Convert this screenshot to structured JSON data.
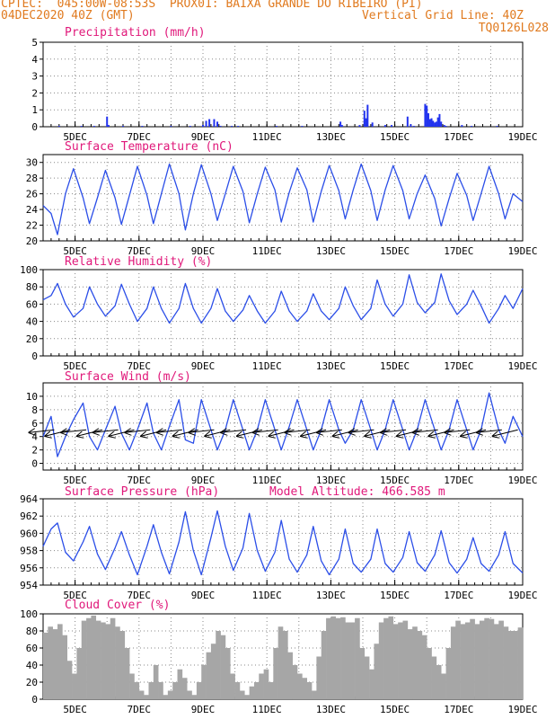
{
  "header": {
    "line1_left": "CPTEC:  045:00W-08:53S  PROX01: BAIXA GRANDE DO RIBEIRO (PI)",
    "line2_left": "04DEC2020 40Z (GMT)",
    "line2_right": "Vertical Grid Line: 40Z",
    "line3_right": "TQ0126L028"
  },
  "colors": {
    "header_text": "#e07a1f",
    "panel_title": "#e0187a",
    "series_line": "#2b4ee8",
    "precip_bar": "#2233ee",
    "cloud_fill": "#a6a6a6",
    "grid": "#888888"
  },
  "chart_data": [
    {
      "id": "precip",
      "type": "bar",
      "title": "Precipitation (mm/h)",
      "ylim": [
        0,
        5
      ],
      "yticks": [
        0,
        1,
        2,
        3,
        4,
        5
      ],
      "grid": true,
      "x_start_day": 4.0,
      "x_end_day": 19.0,
      "xtick_days": [
        5,
        7,
        9,
        11,
        13,
        15,
        17,
        19
      ],
      "xtick_labels": [
        "5DEC",
        "7DEC",
        "9DEC",
        "11DEC",
        "13DEC",
        "15DEC",
        "17DEC",
        "19DEC"
      ],
      "x_days": [
        4.5,
        5.2,
        5.6,
        6.0,
        6.05,
        6.5,
        7.1,
        8.0,
        8.6,
        9.0,
        9.1,
        9.2,
        9.35,
        9.45,
        9.55,
        9.9,
        10.1,
        11.3,
        12.1,
        13.3,
        13.35,
        13.9,
        14.05,
        14.1,
        14.15,
        14.3,
        14.7,
        14.9,
        15.4,
        15.5,
        15.6,
        15.95,
        16.0,
        16.05,
        16.1,
        16.15,
        16.2,
        16.25,
        16.3,
        16.35,
        16.4,
        16.45,
        16.55,
        16.6,
        17.1,
        17.4,
        18.2
      ],
      "values": [
        0.05,
        0.05,
        0.05,
        0.6,
        0.1,
        0.05,
        0.05,
        0.05,
        0.05,
        0.1,
        0.35,
        0.45,
        0.45,
        0.3,
        0.05,
        0.05,
        0.05,
        0.05,
        0.05,
        0.3,
        0.1,
        0.1,
        0.95,
        0.5,
        1.3,
        0.25,
        0.1,
        0.1,
        0.6,
        0.15,
        0.05,
        1.35,
        1.25,
        0.8,
        0.45,
        0.5,
        0.35,
        0.25,
        0.3,
        0.55,
        0.75,
        0.3,
        0.1,
        0.05,
        0.1,
        0.05,
        0.05
      ]
    },
    {
      "id": "temperature",
      "type": "line",
      "title": "Surface Temperature (nC)",
      "ylim": [
        20,
        31
      ],
      "yticks": [
        20,
        22,
        24,
        26,
        28,
        30
      ],
      "grid": true,
      "x_start_day": 4.0,
      "x_end_day": 19.0,
      "xtick_days": [
        5,
        7,
        9,
        11,
        13,
        15,
        17,
        19
      ],
      "xtick_labels": [
        "5DEC",
        "7DEC",
        "9DEC",
        "11DEC",
        "13DEC",
        "15DEC",
        "17DEC",
        "19DEC"
      ],
      "x_days": [
        4.0,
        4.25,
        4.45,
        4.7,
        4.95,
        5.25,
        5.45,
        5.7,
        5.95,
        6.25,
        6.45,
        6.7,
        6.95,
        7.25,
        7.45,
        7.7,
        7.95,
        8.25,
        8.45,
        8.7,
        8.95,
        9.25,
        9.45,
        9.7,
        9.95,
        10.25,
        10.45,
        10.7,
        10.95,
        11.25,
        11.45,
        11.7,
        11.95,
        12.25,
        12.45,
        12.7,
        12.95,
        13.25,
        13.45,
        13.7,
        13.95,
        14.25,
        14.45,
        14.7,
        14.95,
        15.25,
        15.45,
        15.7,
        15.95,
        16.25,
        16.45,
        16.7,
        16.95,
        17.25,
        17.45,
        17.7,
        17.95,
        18.25,
        18.45,
        18.7,
        19.0
      ],
      "values": [
        24.5,
        23.5,
        20.8,
        26,
        29.2,
        25.5,
        22.2,
        25.5,
        29,
        25.5,
        22.1,
        25.8,
        29.5,
        25.8,
        22.2,
        26,
        29.8,
        26,
        21.4,
        26,
        29.7,
        26,
        22.6,
        26,
        29.5,
        26.3,
        22.3,
        26,
        29.4,
        26.5,
        22.4,
        26.2,
        29.3,
        26.5,
        22.4,
        26.3,
        29.6,
        26.4,
        22.8,
        26.5,
        29.8,
        26.4,
        22.6,
        26.5,
        29.6,
        26.4,
        22.8,
        26,
        28.4,
        25.4,
        21.9,
        25.4,
        28.6,
        25.8,
        22.6,
        26,
        29.5,
        26,
        22.8,
        26,
        25
      ]
    },
    {
      "id": "humidity",
      "type": "line",
      "title": "Relative Humidity (%)",
      "ylim": [
        0,
        100
      ],
      "yticks": [
        0,
        20,
        40,
        60,
        80,
        100
      ],
      "grid": true,
      "x_start_day": 4.0,
      "x_end_day": 19.0,
      "xtick_days": [
        5,
        7,
        9,
        11,
        13,
        15,
        17,
        19
      ],
      "xtick_labels": [
        "5DEC",
        "7DEC",
        "9DEC",
        "11DEC",
        "13DEC",
        "15DEC",
        "17DEC",
        "19DEC"
      ],
      "x_days": [
        4.0,
        4.25,
        4.45,
        4.7,
        4.95,
        5.25,
        5.45,
        5.7,
        5.95,
        6.25,
        6.45,
        6.7,
        6.95,
        7.25,
        7.45,
        7.7,
        7.95,
        8.25,
        8.45,
        8.7,
        8.95,
        9.25,
        9.45,
        9.7,
        9.95,
        10.25,
        10.45,
        10.7,
        10.95,
        11.25,
        11.45,
        11.7,
        11.95,
        12.25,
        12.45,
        12.7,
        12.95,
        13.25,
        13.45,
        13.7,
        13.95,
        14.25,
        14.45,
        14.7,
        14.95,
        15.25,
        15.45,
        15.7,
        15.95,
        16.25,
        16.45,
        16.7,
        16.95,
        17.25,
        17.45,
        17.7,
        17.95,
        18.25,
        18.45,
        18.7,
        19.0
      ],
      "values": [
        65,
        70,
        84,
        60,
        45,
        55,
        80,
        60,
        46,
        58,
        83,
        60,
        40,
        55,
        80,
        55,
        38,
        55,
        84,
        55,
        38,
        55,
        78,
        52,
        40,
        53,
        70,
        52,
        38,
        52,
        75,
        52,
        40,
        52,
        72,
        52,
        42,
        55,
        80,
        58,
        42,
        55,
        88,
        60,
        46,
        60,
        94,
        62,
        50,
        62,
        95,
        64,
        48,
        60,
        76,
        58,
        38,
        55,
        70,
        55,
        78
      ]
    },
    {
      "id": "wind",
      "type": "line",
      "title": "Surface Wind (m/s)",
      "ylim": [
        -1,
        12
      ],
      "yticks": [
        0,
        2,
        4,
        6,
        8,
        10
      ],
      "grid": true,
      "x_start_day": 4.0,
      "x_end_day": 19.0,
      "xtick_days": [
        5,
        7,
        9,
        11,
        13,
        15,
        17,
        19
      ],
      "xtick_labels": [
        "5DEC",
        "7DEC",
        "9DEC",
        "11DEC",
        "13DEC",
        "15DEC",
        "17DEC",
        "19DEC"
      ],
      "x_days": [
        4.0,
        4.25,
        4.45,
        4.7,
        4.95,
        5.25,
        5.45,
        5.7,
        5.95,
        6.25,
        6.45,
        6.7,
        6.95,
        7.25,
        7.45,
        7.7,
        7.95,
        8.25,
        8.45,
        8.7,
        8.95,
        9.25,
        9.45,
        9.7,
        9.95,
        10.25,
        10.45,
        10.7,
        10.95,
        11.25,
        11.45,
        11.7,
        11.95,
        12.25,
        12.45,
        12.7,
        12.95,
        13.25,
        13.45,
        13.7,
        13.95,
        14.25,
        14.45,
        14.7,
        14.95,
        15.25,
        15.45,
        15.7,
        15.95,
        16.25,
        16.45,
        16.7,
        16.95,
        17.25,
        17.45,
        17.7,
        17.95,
        18.25,
        18.45,
        18.7,
        19.0
      ],
      "values": [
        4,
        7,
        1,
        4,
        6.5,
        9,
        4,
        2,
        5,
        8.5,
        4.5,
        2,
        5,
        9,
        4.5,
        2,
        5.5,
        9.5,
        3.5,
        3,
        9.5,
        5,
        2,
        5,
        9.5,
        5,
        2,
        5,
        9.5,
        5,
        2,
        5.5,
        9.5,
        5,
        2,
        5,
        9.5,
        5,
        3,
        5,
        9.5,
        5,
        2,
        5,
        9.5,
        5,
        2,
        5,
        9.5,
        5,
        2,
        5,
        9.5,
        5,
        2,
        5,
        10.5,
        5,
        3,
        7,
        4
      ],
      "arrow_days": [
        4.35,
        4.85,
        5.35,
        5.85,
        6.35,
        6.85,
        7.35,
        7.85,
        8.35,
        8.85,
        9.35,
        9.85,
        10.35,
        10.85,
        11.35,
        11.85,
        12.35,
        12.85,
        13.35,
        13.85,
        14.35,
        14.85,
        15.35,
        15.85,
        16.35,
        16.85,
        17.35,
        17.85,
        18.35,
        18.85
      ],
      "arrow_dirs": [
        "west",
        "southwest",
        "west",
        "southwest",
        "west",
        "southwest",
        "west",
        "southwest",
        "west",
        "southwest",
        "west",
        "southwest",
        "west",
        "southwest",
        "west",
        "southwest",
        "west",
        "southwest",
        "west",
        "southwest",
        "west",
        "southwest",
        "west",
        "southwest",
        "west",
        "southwest",
        "west",
        "southwest",
        "west",
        "southwest"
      ]
    },
    {
      "id": "pressure",
      "type": "line",
      "title": "Surface Pressure (hPa)",
      "subtitle": "Model Altitude: 466.585 m",
      "ylim": [
        954,
        964
      ],
      "yticks": [
        954,
        956,
        958,
        960,
        962,
        964
      ],
      "grid": true,
      "x_start_day": 4.0,
      "x_end_day": 19.0,
      "xtick_days": [
        5,
        7,
        9,
        11,
        13,
        15,
        17,
        19
      ],
      "xtick_labels": [
        "5DEC",
        "7DEC",
        "9DEC",
        "11DEC",
        "13DEC",
        "15DEC",
        "17DEC",
        "19DEC"
      ],
      "x_days": [
        4.0,
        4.25,
        4.45,
        4.7,
        4.95,
        5.25,
        5.45,
        5.7,
        5.95,
        6.25,
        6.45,
        6.7,
        6.95,
        7.25,
        7.45,
        7.7,
        7.95,
        8.25,
        8.45,
        8.7,
        8.95,
        9.25,
        9.45,
        9.7,
        9.95,
        10.25,
        10.45,
        10.7,
        10.95,
        11.25,
        11.45,
        11.7,
        11.95,
        12.25,
        12.45,
        12.7,
        12.95,
        13.25,
        13.45,
        13.7,
        13.95,
        14.25,
        14.45,
        14.7,
        14.95,
        15.25,
        15.45,
        15.7,
        15.95,
        16.25,
        16.45,
        16.7,
        16.95,
        17.25,
        17.45,
        17.7,
        17.95,
        18.25,
        18.45,
        18.7,
        19.0
      ],
      "values": [
        958.5,
        960.5,
        961.2,
        957.8,
        956.8,
        959,
        960.8,
        957.6,
        955.8,
        958.3,
        960.2,
        957.5,
        955.2,
        958.5,
        961,
        957.8,
        955.3,
        959,
        962.5,
        958,
        955.2,
        959.5,
        962.6,
        958.5,
        955.7,
        958.3,
        962.3,
        958,
        955.6,
        957.8,
        961.5,
        957,
        955.5,
        957.5,
        960.8,
        956.8,
        955.2,
        957,
        960.5,
        956.5,
        955.5,
        957,
        960.5,
        956.5,
        955.5,
        957.2,
        960.2,
        956.6,
        955.6,
        957.5,
        960.3,
        956.6,
        955.4,
        957,
        959.5,
        956.5,
        955.6,
        957.5,
        960.2,
        956.5,
        955.4
      ]
    },
    {
      "id": "cloud",
      "type": "area",
      "title": "Cloud Cover (%)",
      "ylim": [
        0,
        100
      ],
      "yticks": [
        0,
        20,
        40,
        60,
        80,
        100
      ],
      "grid": true,
      "x_start_day": 4.0,
      "x_end_day": 19.0,
      "xtick_days": [
        5,
        7,
        9,
        11,
        13,
        15,
        17,
        19
      ],
      "xtick_labels": [
        "5DEC",
        "7DEC",
        "9DEC",
        "11DEC",
        "13DEC",
        "15DEC",
        "17DEC",
        "19DEC"
      ],
      "x_days": [
        4.0,
        4.15,
        4.3,
        4.45,
        4.6,
        4.75,
        4.9,
        5.05,
        5.2,
        5.35,
        5.5,
        5.65,
        5.8,
        5.95,
        6.1,
        6.25,
        6.4,
        6.55,
        6.7,
        6.85,
        7.0,
        7.15,
        7.3,
        7.45,
        7.6,
        7.75,
        7.9,
        8.05,
        8.2,
        8.35,
        8.5,
        8.65,
        8.8,
        8.95,
        9.1,
        9.25,
        9.4,
        9.55,
        9.7,
        9.85,
        10.0,
        10.15,
        10.3,
        10.45,
        10.6,
        10.75,
        10.9,
        11.05,
        11.2,
        11.35,
        11.5,
        11.65,
        11.8,
        11.95,
        12.1,
        12.25,
        12.4,
        12.55,
        12.7,
        12.85,
        13.0,
        13.15,
        13.3,
        13.45,
        13.6,
        13.75,
        13.9,
        14.05,
        14.2,
        14.35,
        14.5,
        14.65,
        14.8,
        14.95,
        15.1,
        15.25,
        15.4,
        15.55,
        15.7,
        15.85,
        16.0,
        16.15,
        16.3,
        16.45,
        16.6,
        16.75,
        16.9,
        17.05,
        17.2,
        17.35,
        17.5,
        17.65,
        17.8,
        17.95,
        18.1,
        18.25,
        18.4,
        18.55,
        18.7,
        18.85,
        19.0
      ],
      "values": [
        78,
        85,
        82,
        88,
        75,
        45,
        30,
        60,
        92,
        95,
        98,
        92,
        90,
        88,
        95,
        85,
        80,
        60,
        30,
        20,
        10,
        5,
        20,
        40,
        20,
        5,
        10,
        20,
        35,
        25,
        10,
        5,
        20,
        40,
        55,
        65,
        80,
        75,
        60,
        30,
        20,
        10,
        5,
        15,
        20,
        30,
        35,
        20,
        60,
        85,
        80,
        55,
        40,
        30,
        25,
        20,
        10,
        50,
        80,
        95,
        97,
        95,
        96,
        90,
        90,
        95,
        60,
        50,
        35,
        65,
        90,
        95,
        97,
        88,
        90,
        92,
        82,
        85,
        80,
        75,
        60,
        50,
        40,
        30,
        60,
        85,
        92,
        88,
        90,
        94,
        88,
        92,
        95,
        94,
        88,
        92,
        85,
        80,
        80,
        84,
        80
      ]
    }
  ]
}
